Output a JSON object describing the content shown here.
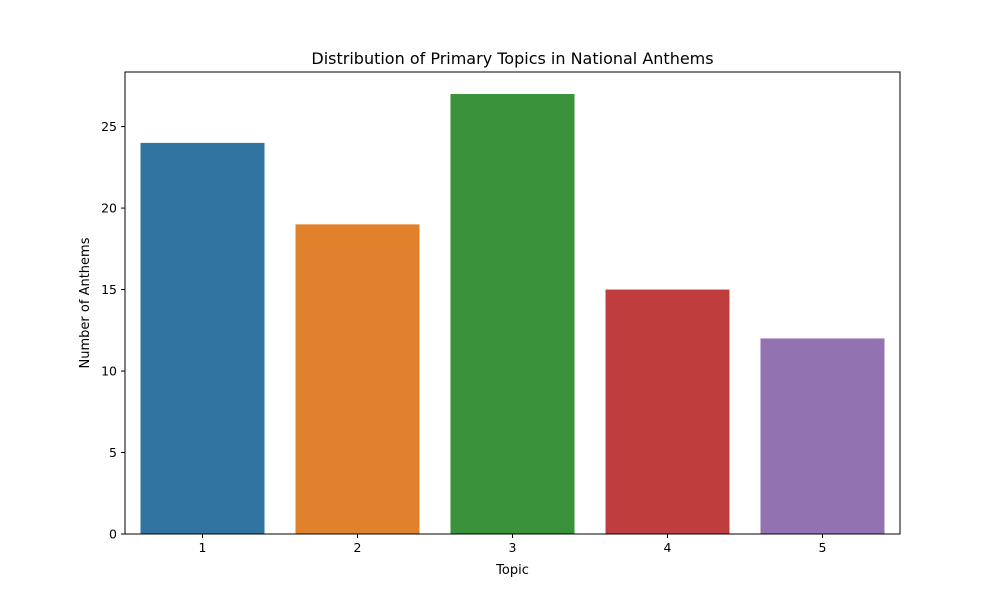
{
  "chart_data": {
    "type": "bar",
    "title": "Distribution of Primary Topics in National Anthems",
    "xlabel": "Topic",
    "ylabel": "Number of Anthems",
    "categories": [
      "1",
      "2",
      "3",
      "4",
      "5"
    ],
    "values": [
      24,
      19,
      27,
      15,
      12
    ],
    "colors": [
      "#3274a1",
      "#e1812c",
      "#3a923a",
      "#c03d3e",
      "#9372b2"
    ],
    "ylim": [
      0,
      28.35
    ],
    "yticks": [
      0,
      5,
      10,
      15,
      20,
      25
    ],
    "grid": false,
    "legend": "none"
  }
}
